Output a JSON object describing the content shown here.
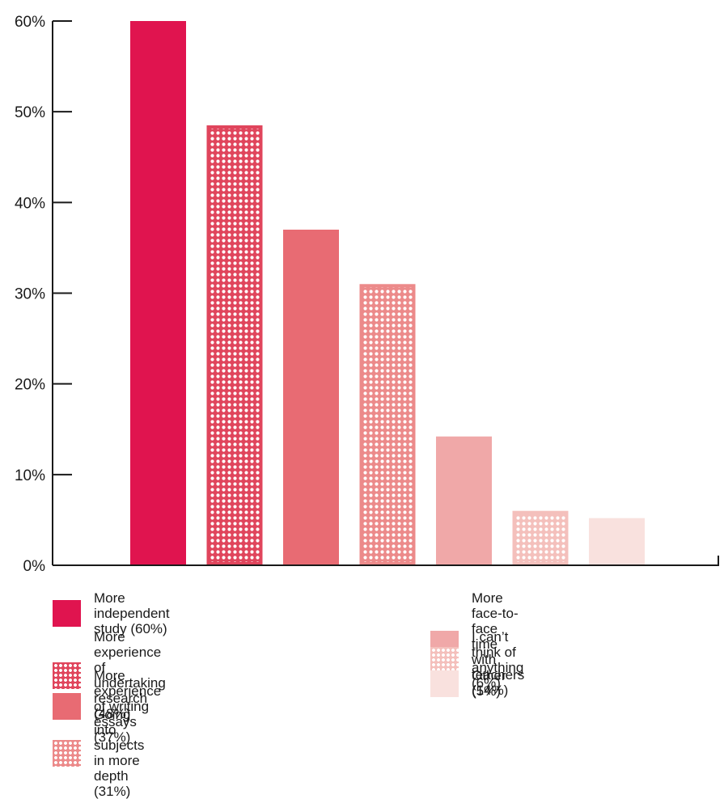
{
  "chart_data": {
    "type": "bar",
    "ylim": [
      0,
      60
    ],
    "yticks": [
      "0%",
      "10%",
      "20%",
      "30%",
      "40%",
      "50%",
      "60%"
    ],
    "categories": [
      "More independent study (60%)",
      "More experience of undertaking research (48%)",
      "More experience of writing essays (37%)",
      "Going into subjects in more depth (31%)",
      "More face-to-face time with teachers (14%)",
      "I can’t think of anything (6%)",
      "Other (5%)"
    ],
    "values": [
      60,
      48.5,
      37,
      31,
      14.2,
      6,
      5.2
    ],
    "colors": [
      "#e0144f",
      "#e0455c",
      "#e86b73",
      "#ec8a8a",
      "#f0a8a8",
      "#f4c0bc",
      "#f9e1de"
    ],
    "patterned": [
      false,
      true,
      false,
      true,
      false,
      true,
      false
    ],
    "legend": [
      {
        "text": "More independent study (60%)"
      },
      {
        "text": "More experience of\nundertaking research (48%)"
      },
      {
        "text": "More experience of writing essays (37%)"
      },
      {
        "text": "Going into subjects in more depth (31%)"
      },
      {
        "text": "More face-to-face time\nwith teachers (14%)"
      },
      {
        "text": "I can’t think of anything (6%)"
      },
      {
        "text": "Other (5%)"
      }
    ]
  }
}
